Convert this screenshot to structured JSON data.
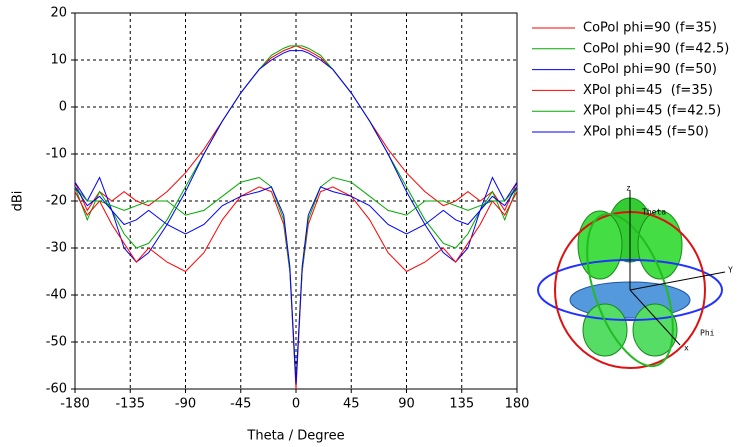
{
  "chart_data": {
    "type": "line",
    "xlabel": "Theta / Degree",
    "ylabel": "dBi",
    "x": [
      -180,
      -170,
      -160,
      -150,
      -140,
      -130,
      -120,
      -105,
      -90,
      -75,
      -60,
      -45,
      -30,
      -20,
      -10,
      -5,
      0,
      5,
      10,
      20,
      30,
      45,
      60,
      75,
      90,
      105,
      120,
      130,
      140,
      150,
      160,
      170,
      180
    ],
    "xlim": [
      -180,
      180
    ],
    "xticks": [
      -180,
      -135,
      -90,
      -45,
      0,
      45,
      90,
      135,
      180
    ],
    "ylim": [
      -60,
      20
    ],
    "yticks": [
      -60,
      -50,
      -40,
      -30,
      -20,
      -10,
      0,
      10,
      20
    ],
    "grid": true,
    "series": [
      {
        "name": "CoPol phi=90 (f=35)",
        "color": "#ff0000",
        "values": [
          -16,
          -22,
          -18,
          -20,
          -18,
          -20,
          -21,
          -18,
          -14,
          -9,
          -3,
          3,
          8,
          10.5,
          12,
          12.5,
          13,
          12.5,
          12,
          10.5,
          8,
          3,
          -3,
          -9,
          -14,
          -18,
          -21,
          -20,
          -18,
          -20,
          -18,
          -22,
          -16
        ]
      },
      {
        "name": "CoPol phi=90 (f=42.5)",
        "color": "#00aa00",
        "values": [
          -17,
          -24,
          -18,
          -22,
          -27,
          -30,
          -29,
          -24,
          -17,
          -10,
          -3,
          3,
          8,
          11,
          12.5,
          13,
          13,
          13,
          12.5,
          11,
          8,
          3,
          -3,
          -10,
          -17,
          -24,
          -29,
          -30,
          -27,
          -22,
          -18,
          -24,
          -17
        ]
      },
      {
        "name": "CoPol phi=90 (f=50)",
        "color": "#0000ff",
        "values": [
          -16,
          -20,
          -15,
          -22,
          -30,
          -33,
          -31,
          -25,
          -18,
          -10,
          -3,
          3,
          8,
          10,
          11.5,
          12,
          12,
          12,
          11.5,
          10,
          8,
          3,
          -3,
          -10,
          -18,
          -25,
          -31,
          -33,
          -30,
          -22,
          -15,
          -20,
          -16
        ]
      },
      {
        "name": "XPol phi=45  (f=35)",
        "color": "#ff0000",
        "values": [
          -18,
          -23,
          -20,
          -25,
          -29,
          -33,
          -30,
          -33,
          -35,
          -31,
          -24,
          -19,
          -17,
          -18,
          -25,
          -35,
          -60,
          -35,
          -25,
          -18,
          -17,
          -19,
          -24,
          -31,
          -35,
          -33,
          -30,
          -33,
          -29,
          -25,
          -20,
          -23,
          -18
        ]
      },
      {
        "name": "XPol phi=45 (f=42.5)",
        "color": "#00aa00",
        "values": [
          -17,
          -20,
          -20,
          -21,
          -22,
          -21,
          -20,
          -20,
          -23,
          -22,
          -19,
          -16,
          -15,
          -17,
          -24,
          -35,
          -58,
          -35,
          -24,
          -17,
          -15,
          -16,
          -19,
          -22,
          -23,
          -20,
          -20,
          -21,
          -22,
          -21,
          -20,
          -20,
          -17
        ]
      },
      {
        "name": "XPol phi=45 (f=50)",
        "color": "#0000ff",
        "values": [
          -17,
          -21,
          -19,
          -22,
          -25,
          -24,
          -22,
          -25,
          -27,
          -25,
          -21,
          -19,
          -18,
          -17,
          -23,
          -34,
          -59,
          -34,
          -23,
          -17,
          -18,
          -19,
          -21,
          -25,
          -27,
          -25,
          -22,
          -24,
          -25,
          -22,
          -19,
          -21,
          -17
        ]
      }
    ],
    "inset_labels": {
      "z": "z",
      "theta": "Theta",
      "y": "Y",
      "phi": "Phi",
      "x": "x"
    }
  }
}
